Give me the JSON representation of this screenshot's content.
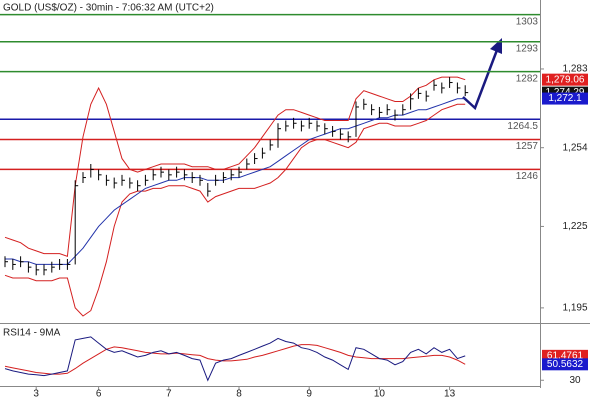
{
  "chart_data": [
    {
      "type": "ohlc",
      "title": "GOLD (US$/OZ) - 30min - 7:06:32 AM (UTC+2)",
      "categories": [
        null,
        null,
        null,
        null,
        "3",
        null,
        null,
        null,
        null,
        null,
        null,
        null,
        "6",
        null,
        null,
        null,
        null,
        null,
        null,
        null,
        null,
        "7",
        null,
        null,
        null,
        null,
        null,
        null,
        null,
        null,
        "8",
        null,
        null,
        null,
        null,
        null,
        null,
        null,
        null,
        "9",
        null,
        null,
        null,
        null,
        null,
        null,
        null,
        null,
        "10",
        null,
        null,
        null,
        null,
        null,
        null,
        null,
        null,
        "13",
        null,
        null
      ],
      "high": [
        1214,
        1213,
        1214,
        1212,
        1211,
        1211,
        1212,
        1213,
        1213,
        1242,
        1245,
        1248,
        1246,
        1244,
        1243,
        1244,
        1243,
        1242,
        1244,
        1246,
        1247,
        1246,
        1247,
        1246,
        1245,
        1244,
        1241,
        1244,
        1245,
        1246,
        1247,
        1250,
        1252,
        1254,
        1257,
        1263,
        1264,
        1265,
        1264,
        1265,
        1264,
        1263,
        1262,
        1261,
        1260,
        1271,
        1272,
        1270,
        1269,
        1270,
        1268,
        1270,
        1274,
        1276,
        1275,
        1279,
        1278,
        1280,
        1278,
        1277
      ],
      "low": [
        1210,
        1209,
        1210,
        1208,
        1207,
        1207,
        1208,
        1209,
        1209,
        1211,
        1241,
        1243,
        1242,
        1240,
        1239,
        1240,
        1239,
        1238,
        1240,
        1242,
        1243,
        1242,
        1243,
        1242,
        1241,
        1240,
        1236,
        1240,
        1241,
        1242,
        1243,
        1246,
        1248,
        1250,
        1253,
        1254,
        1260,
        1261,
        1260,
        1261,
        1260,
        1259,
        1258,
        1257,
        1256,
        1258,
        1268,
        1266,
        1265,
        1266,
        1264,
        1266,
        1268,
        1272,
        1271,
        1275,
        1274,
        1276,
        1274,
        1273
      ],
      "close": [
        1212,
        1211,
        1212,
        1210,
        1209,
        1209,
        1210,
        1211,
        1211,
        1240,
        1243,
        1246,
        1244,
        1242,
        1241,
        1242,
        1241,
        1240,
        1242,
        1244,
        1245,
        1244,
        1245,
        1244,
        1243,
        1242,
        1238,
        1242,
        1243,
        1244,
        1245,
        1248,
        1250,
        1252,
        1255,
        1261,
        1262,
        1263,
        1262,
        1263,
        1262,
        1261,
        1260,
        1259,
        1258,
        1269,
        1270,
        1268,
        1267,
        1268,
        1266,
        1268,
        1272,
        1274,
        1273,
        1277,
        1276,
        1278,
        1276,
        1274.29
      ],
      "ma": [
        1213,
        1213,
        1212,
        1212,
        1211,
        1211,
        1211,
        1211,
        1211,
        1214,
        1217,
        1221,
        1225,
        1228,
        1231,
        1233,
        1235,
        1237,
        1239,
        1240,
        1241,
        1242,
        1242,
        1243,
        1243,
        1243,
        1242,
        1242,
        1242,
        1243,
        1243,
        1244,
        1245,
        1246,
        1247,
        1249,
        1251,
        1253,
        1255,
        1257,
        1258,
        1259,
        1260,
        1261,
        1261,
        1262,
        1263,
        1264,
        1265,
        1265,
        1266,
        1266,
        1267,
        1268,
        1268,
        1269,
        1270,
        1271,
        1272,
        1272.1
      ],
      "upper_band": [
        1221,
        1220,
        1219,
        1217,
        1216,
        1215,
        1215,
        1215,
        1214,
        1240,
        1258,
        1270,
        1276,
        1270,
        1260,
        1250,
        1246,
        1245,
        1246,
        1247,
        1248,
        1248,
        1248,
        1248,
        1247,
        1247,
        1247,
        1246,
        1246,
        1247,
        1248,
        1251,
        1254,
        1258,
        1262,
        1266,
        1268,
        1268,
        1267,
        1266,
        1265,
        1264,
        1264,
        1264,
        1264,
        1272,
        1275,
        1274,
        1273,
        1272,
        1271,
        1271,
        1273,
        1276,
        1277,
        1279,
        1280,
        1280,
        1280,
        1279.06
      ],
      "lower_band": [
        1207,
        1206,
        1206,
        1206,
        1205,
        1205,
        1205,
        1206,
        1206,
        1195,
        1192,
        1194,
        1202,
        1212,
        1225,
        1234,
        1237,
        1238,
        1238,
        1239,
        1239,
        1240,
        1240,
        1240,
        1239,
        1238,
        1234,
        1236,
        1237,
        1238,
        1239,
        1239,
        1239,
        1240,
        1241,
        1243,
        1246,
        1250,
        1254,
        1256,
        1257,
        1257,
        1256,
        1255,
        1254,
        1256,
        1261,
        1262,
        1263,
        1263,
        1262,
        1262,
        1262,
        1263,
        1264,
        1266,
        1268,
        1269,
        1270,
        1270
      ],
      "bar_color": "#000000",
      "ma_color": "#2233aa",
      "band_color": "#d42020",
      "ylim": [
        1189.8,
        1308.4
      ],
      "yticks": [
        {
          "value": 1195,
          "label": "1,195"
        },
        {
          "value": 1225,
          "label": "1,225"
        },
        {
          "value": 1254,
          "label": "1,254"
        },
        {
          "value": 1283,
          "label": "1,283"
        }
      ],
      "levels": [
        {
          "value": 1303,
          "color": "#2e8b2e"
        },
        {
          "value": 1293,
          "color": "#2e8b2e"
        },
        {
          "value": 1282,
          "color": "#2e8b2e"
        },
        {
          "value": 1264.5,
          "color": "#1a1aaa"
        },
        {
          "value": 1257,
          "color": "#d42020"
        },
        {
          "value": 1246,
          "color": "#d42020"
        }
      ],
      "markers": [
        {
          "value": 1279.06,
          "label": "1,279.06",
          "color": "#e02020"
        },
        {
          "value": 1274.29,
          "label": "1,274.29",
          "color": "#111111"
        },
        {
          "value": 1272.1,
          "label": "1,272.1",
          "color": "#1a1acc"
        }
      ]
    },
    {
      "type": "line",
      "title": "RSI14 - 9MA",
      "values": [
        45,
        42,
        40,
        38,
        37,
        36,
        38,
        40,
        42,
        82,
        84,
        86,
        78,
        70,
        66,
        68,
        64,
        60,
        62,
        66,
        68,
        64,
        66,
        62,
        58,
        56,
        30,
        52,
        56,
        58,
        62,
        66,
        70,
        74,
        78,
        84,
        80,
        78,
        72,
        70,
        66,
        60,
        56,
        50,
        44,
        72,
        70,
        64,
        58,
        56,
        50,
        54,
        66,
        70,
        64,
        72,
        66,
        70,
        58,
        61.4761
      ],
      "ma_values": [
        48,
        46,
        44,
        42,
        40,
        39,
        38,
        38,
        39,
        45,
        52,
        58,
        64,
        70,
        73,
        72,
        70,
        68,
        66,
        65,
        64,
        64,
        65,
        64,
        63,
        62,
        58,
        56,
        55,
        55,
        56,
        57,
        60,
        62,
        65,
        68,
        71,
        74,
        76,
        76,
        75,
        72,
        69,
        66,
        62,
        60,
        59,
        58,
        58,
        58,
        58,
        58,
        59,
        60,
        61,
        62,
        62,
        60,
        56,
        50.5632
      ],
      "color": "#1a1a80",
      "ma_color": "#d42020",
      "ylim": [
        20,
        100
      ],
      "yticks": [
        30
      ],
      "markers": [
        {
          "value": 61.4761,
          "label": "61.4761",
          "color": "#e02020"
        },
        {
          "value": 50.5632,
          "label": "50.5632",
          "color": "#1a1acc"
        }
      ]
    }
  ]
}
